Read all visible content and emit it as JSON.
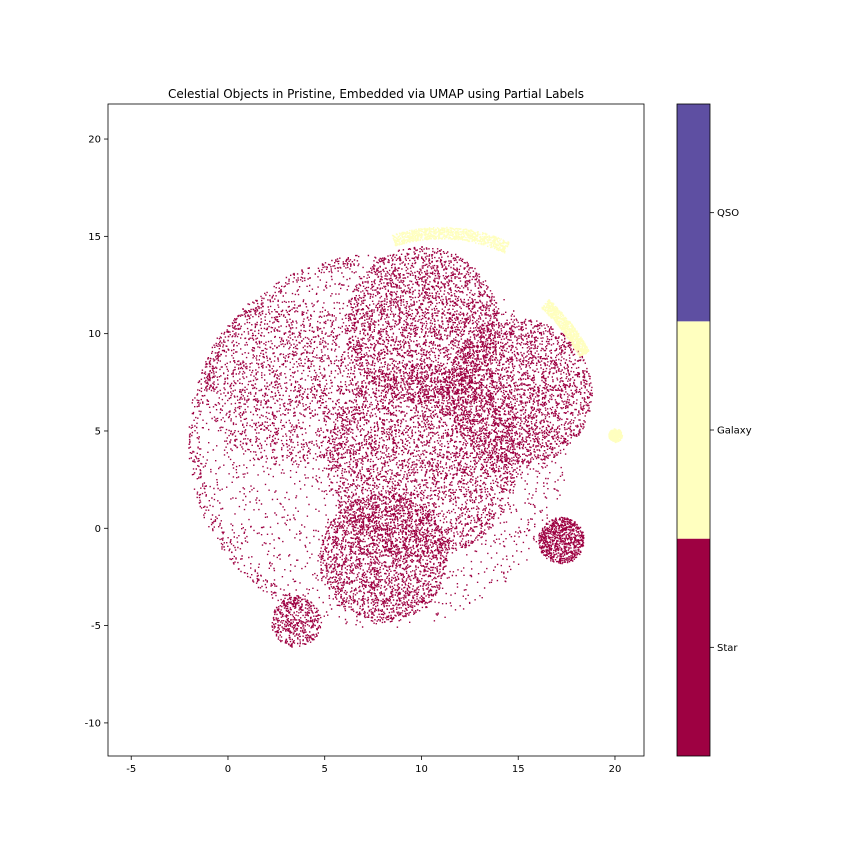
{
  "chart_data": {
    "type": "scatter",
    "title": "Celestial Objects in Pristine, Embedded via UMAP using Partial Labels",
    "xlabel": "",
    "ylabel": "",
    "xlim": [
      -6.2,
      21.5
    ],
    "ylim": [
      -11.7,
      21.8
    ],
    "xticks": [
      -5,
      0,
      5,
      10,
      15,
      20
    ],
    "yticks": [
      -10,
      -5,
      0,
      5,
      10,
      15,
      20
    ],
    "grid": false,
    "colorbar": {
      "placement": "right",
      "labels": [
        "Star",
        "Galaxy",
        "QSO"
      ],
      "colors": [
        "#9e0142",
        "#ffffbf",
        "#5e4fa2"
      ]
    },
    "series": [
      {
        "name": "Star",
        "color": "#9e0142",
        "regions": [
          {
            "shape": "disk",
            "cx": 8.0,
            "cy": 4.5,
            "r": 9.6,
            "density": "sparse"
          },
          {
            "shape": "disk",
            "cx": 10.0,
            "cy": 10.5,
            "r": 4.0,
            "density": "dense"
          },
          {
            "shape": "disk",
            "cx": 15.0,
            "cy": 7.0,
            "r": 3.8,
            "density": "dense"
          },
          {
            "shape": "disk",
            "cx": 10.0,
            "cy": 3.5,
            "r": 5.0,
            "density": "dense"
          },
          {
            "shape": "disk",
            "cx": 8.0,
            "cy": -1.5,
            "r": 3.3,
            "density": "dense"
          },
          {
            "shape": "disk",
            "cx": 3.0,
            "cy": 7.5,
            "r": 4.3,
            "density": "medium"
          },
          {
            "shape": "arc",
            "cx": 7.5,
            "cy": 4.5,
            "r": 9.3,
            "from_deg": 95,
            "to_deg": 245,
            "density": "medium"
          },
          {
            "shape": "disk",
            "cx": 17.2,
            "cy": -0.6,
            "r": 1.2,
            "density": "dense"
          },
          {
            "shape": "disk",
            "cx": 3.5,
            "cy": -4.8,
            "r": 1.3,
            "density": "medium"
          }
        ]
      },
      {
        "name": "Galaxy",
        "color": "#ffffbf",
        "regions": [
          {
            "shape": "arc",
            "cx": 11.0,
            "cy": 7.2,
            "r": 8.0,
            "from_deg": 65,
            "to_deg": 108,
            "density": "dense"
          },
          {
            "shape": "arc",
            "cx": 10.0,
            "cy": 4.5,
            "r": 9.5,
            "from_deg": 28,
            "to_deg": 48,
            "density": "dense"
          },
          {
            "shape": "disk",
            "cx": 20.0,
            "cy": 4.8,
            "r": 0.35,
            "density": "dense"
          }
        ]
      },
      {
        "name": "QSO",
        "color": "#5e4fa2",
        "regions": []
      }
    ]
  }
}
